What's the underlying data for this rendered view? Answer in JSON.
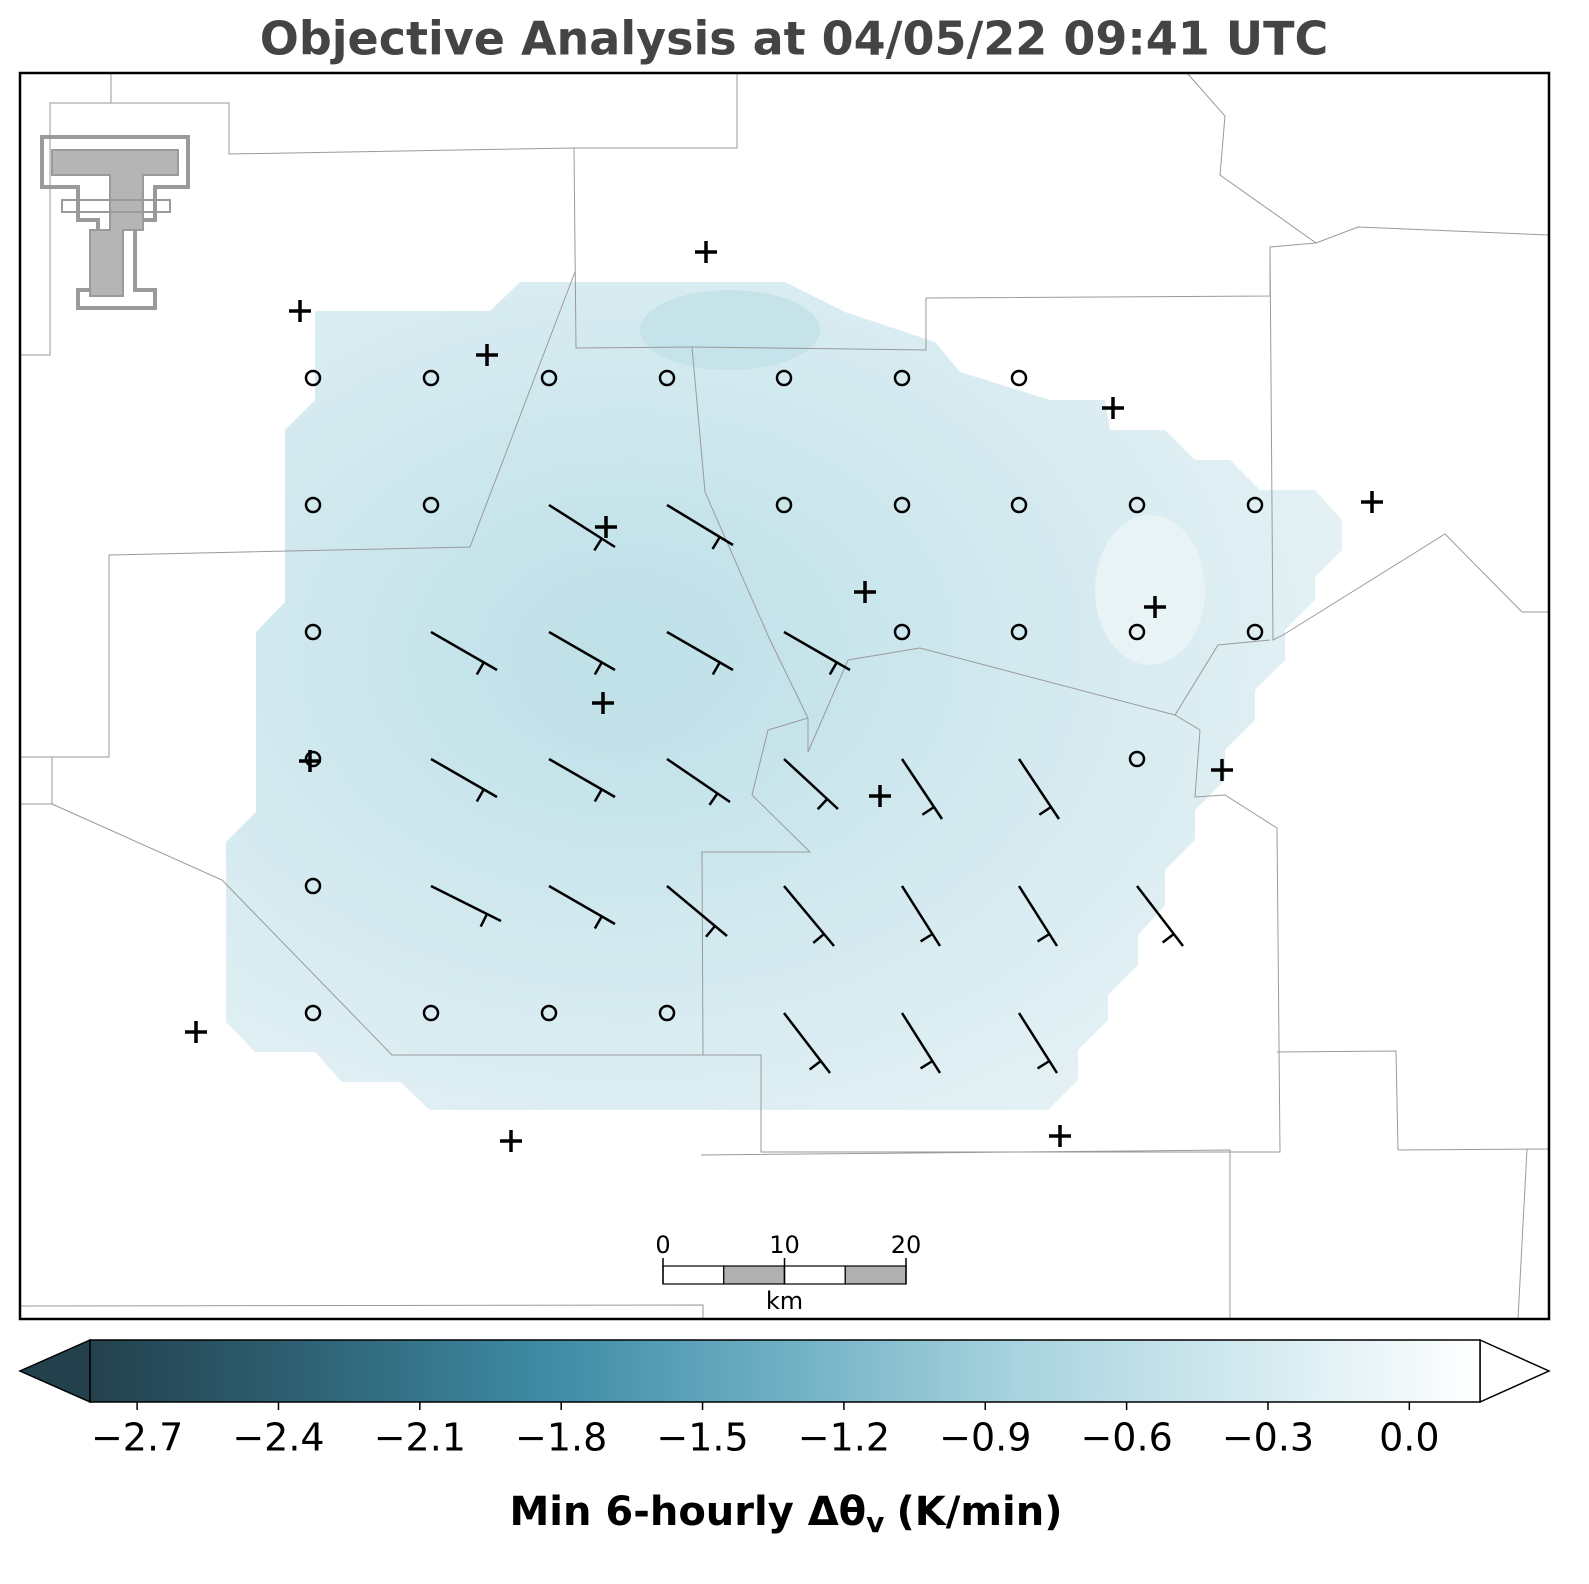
{
  "chart_data": {
    "type": "map",
    "title": "Objective Analysis at 04/05/22 09:41 UTC",
    "colorbar": {
      "label": {
        "text": "Min 6-hourly Δθ",
        "subscript": "v",
        "suffix": "(K/min)"
      },
      "clim": [
        -2.8,
        0.15
      ],
      "ticks": [
        {
          "value": -2.7,
          "label": "−2.7"
        },
        {
          "value": -2.4,
          "label": "−2.4"
        },
        {
          "value": -2.1,
          "label": "−2.1"
        },
        {
          "value": -1.8,
          "label": "−1.8"
        },
        {
          "value": -1.5,
          "label": "−1.5"
        },
        {
          "value": -1.2,
          "label": "−1.2"
        },
        {
          "value": -0.9,
          "label": "−0.9"
        },
        {
          "value": -0.6,
          "label": "−0.6"
        },
        {
          "value": -0.3,
          "label": "−0.3"
        },
        {
          "value": 0.0,
          "label": "0.0"
        }
      ],
      "colors": [
        "#23414d",
        "#2f6477",
        "#3f8ca6",
        "#6fb0c4",
        "#a8d3df",
        "#d3eaf0",
        "#ffffff"
      ]
    },
    "scale_bar": {
      "ticks": [
        0,
        10,
        20
      ],
      "unit": "km"
    }
  }
}
